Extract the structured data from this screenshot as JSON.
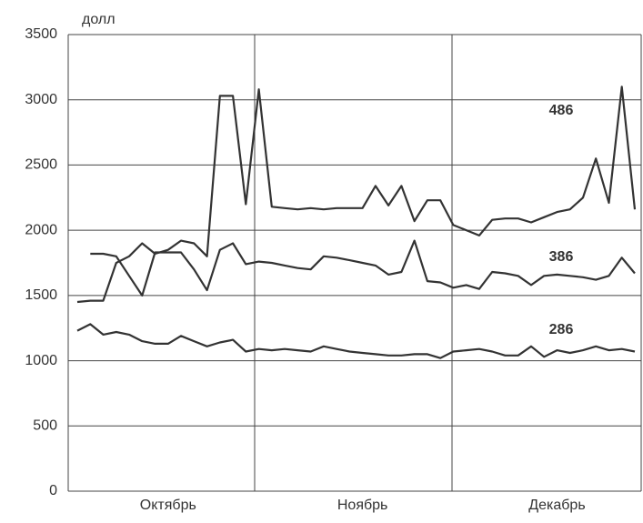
{
  "chart_data": {
    "type": "line",
    "y_label": "долл",
    "categories": [
      null,
      null,
      null,
      null,
      null,
      null,
      null,
      "Октябрь",
      null,
      null,
      null,
      null,
      null,
      null,
      null,
      null,
      null,
      null,
      null,
      null,
      null,
      null,
      "Ноябрь",
      null,
      null,
      null,
      null,
      null,
      null,
      null,
      null,
      null,
      null,
      null,
      null,
      null,
      null,
      "Декабрь",
      null,
      null,
      null,
      null,
      null,
      null
    ],
    "series": [
      {
        "name": "486",
        "color": "#333333",
        "values": [
          1450,
          1460,
          1460,
          1750,
          1800,
          1900,
          1820,
          1850,
          1920,
          1900,
          1800,
          3030,
          3030,
          2200,
          3080,
          2180,
          2170,
          2160,
          2170,
          2160,
          2170,
          2170,
          2170,
          2340,
          2190,
          2340,
          2070,
          2230,
          2230,
          2040,
          2000,
          1960,
          2080,
          2090,
          2090,
          2060,
          2100,
          2140,
          2160,
          2250,
          2550,
          2210,
          3100,
          2160
        ]
      },
      {
        "name": "386",
        "color": "#333333",
        "values": [
          null,
          1820,
          1820,
          1800,
          1650,
          1500,
          1830,
          1830,
          1830,
          1700,
          1540,
          1850,
          1900,
          1740,
          1760,
          1750,
          1730,
          1710,
          1700,
          1800,
          1790,
          1770,
          1750,
          1730,
          1660,
          1680,
          1920,
          1610,
          1600,
          1560,
          1580,
          1550,
          1680,
          1670,
          1650,
          1580,
          1650,
          1660,
          1650,
          1640,
          1620,
          1650,
          1790,
          1670
        ]
      },
      {
        "name": "286",
        "color": "#333333",
        "values": [
          1230,
          1280,
          1200,
          1220,
          1200,
          1150,
          1130,
          1130,
          1190,
          1150,
          1110,
          1140,
          1160,
          1070,
          1090,
          1080,
          1090,
          1080,
          1070,
          1110,
          1090,
          1070,
          1060,
          1050,
          1040,
          1040,
          1050,
          1050,
          1020,
          1070,
          1080,
          1090,
          1070,
          1040,
          1040,
          1110,
          1030,
          1080,
          1060,
          1080,
          1110,
          1080,
          1090,
          1070
        ]
      }
    ],
    "ylim": [
      0,
      3500
    ],
    "yticks": [
      0,
      500,
      1000,
      1500,
      2000,
      2500,
      3000,
      3500
    ],
    "grid": true
  }
}
